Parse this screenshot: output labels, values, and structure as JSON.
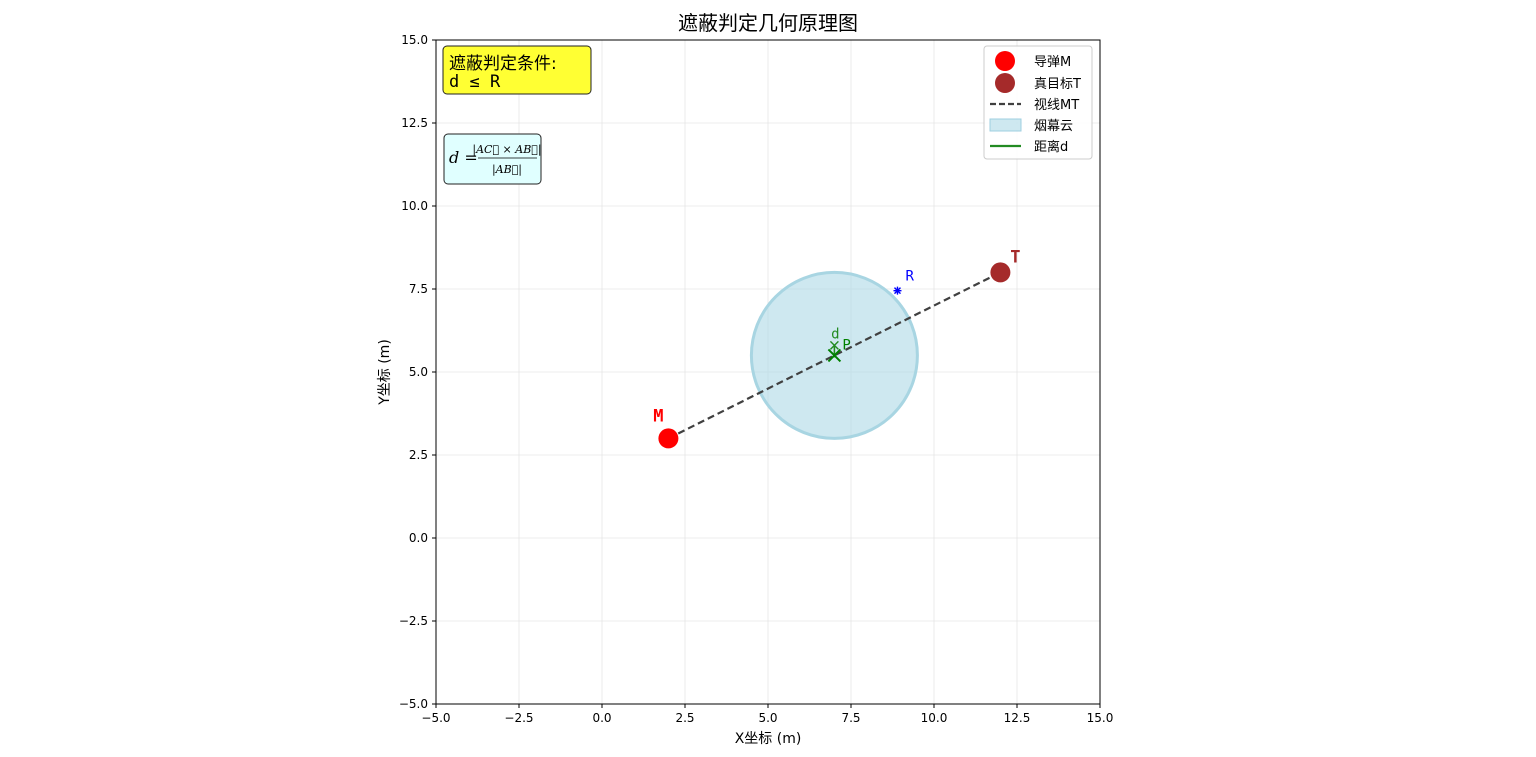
{
  "chart_data": {
    "type": "scatter",
    "title": "遮蔽判定几何原理图",
    "xlabel": "X坐标 (m)",
    "ylabel": "Y坐标 (m)",
    "xlim": [
      -5,
      15
    ],
    "ylim": [
      -5,
      15
    ],
    "xticks": [
      -5,
      -2.5,
      0,
      2.5,
      5,
      7.5,
      10,
      12.5,
      15
    ],
    "yticks": [
      -5,
      -2.5,
      0,
      2.5,
      5,
      7.5,
      10,
      12.5,
      15
    ],
    "xtick_labels": [
      "−5.0",
      "−2.5",
      "0.0",
      "2.5",
      "5.0",
      "7.5",
      "10.0",
      "12.5",
      "15.0"
    ],
    "ytick_labels": [
      "−5.0",
      "−2.5",
      "0.0",
      "2.5",
      "5.0",
      "7.5",
      "10.0",
      "12.5",
      "15.0"
    ],
    "grid": true,
    "equal_aspect": true,
    "legend_position": "top-right",
    "points": {
      "missile": {
        "label": "M",
        "x": 2,
        "y": 3,
        "color": "#ff0000",
        "legend": "导弹M"
      },
      "target": {
        "label": "T",
        "x": 12,
        "y": 8,
        "color": "#a52a2a",
        "legend": "真目标T"
      },
      "foot": {
        "label": "P",
        "x": 7,
        "y": 5.5,
        "color": "#008000"
      },
      "radius_marker": {
        "label": "R",
        "x": 8.9,
        "y": 7.45,
        "color": "#0000ff"
      }
    },
    "line_of_sight": {
      "from": [
        2,
        3
      ],
      "to": [
        12,
        8
      ],
      "color": "#404040",
      "style": "dashed",
      "legend": "视线MT"
    },
    "smoke_cloud": {
      "center": [
        7,
        5.5
      ],
      "radius": 2.5,
      "color": "#add8e6",
      "legend": "烟幕云"
    },
    "distance": {
      "label": "d",
      "from": [
        7,
        5.5
      ],
      "to": [
        7,
        5.5
      ],
      "color": "#228b22",
      "legend": "距离d"
    },
    "legend": [
      "导弹M",
      "真目标T",
      "视线MT",
      "烟幕云",
      "距离d"
    ],
    "annotations": {
      "condition_title": "遮蔽判定条件:",
      "condition_expr": "d ≤ R",
      "formula_lhs": "d =",
      "formula_numerator": "|AC⃗ × AB⃗|",
      "formula_denominator": "|AB⃗|"
    }
  },
  "colors": {
    "condition_box_fill": "#ffff33",
    "formula_box_fill": "#e0ffff",
    "grid": "#e6e6e6"
  }
}
